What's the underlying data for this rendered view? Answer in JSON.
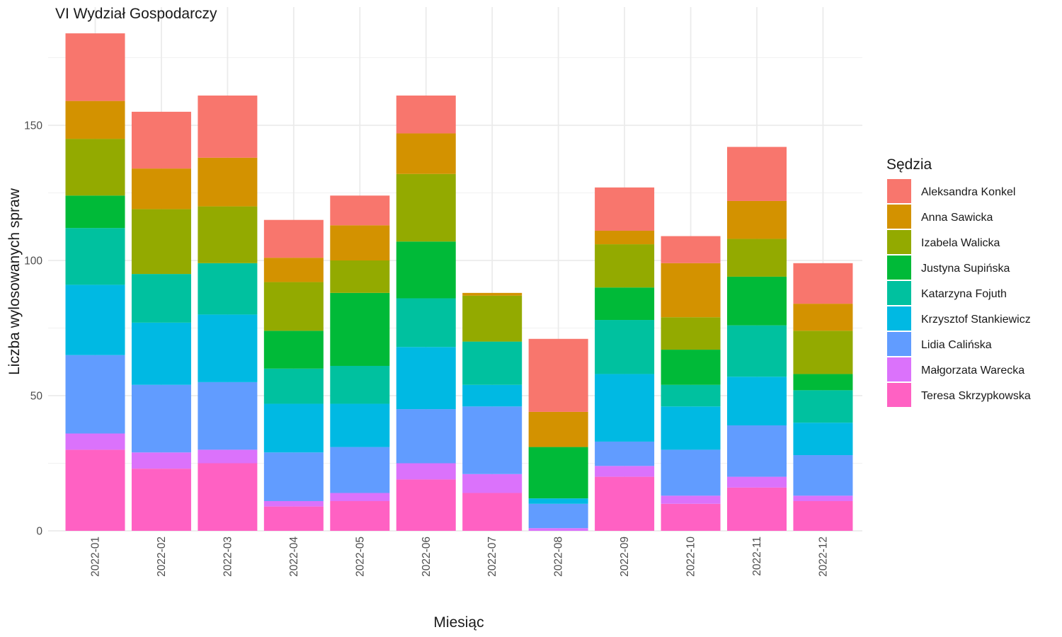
{
  "chart_data": {
    "type": "bar",
    "stacked": true,
    "title": "VI Wydział Gospodarczy",
    "xlabel": "Miesiąc",
    "ylabel": "Liczba wylosowanych spraw",
    "ylim": [
      0,
      190
    ],
    "yticks": [
      0,
      50,
      100,
      150
    ],
    "grid": true,
    "legend_title": "Sędzia",
    "legend_position": "right",
    "categories": [
      "2022-01",
      "2022-02",
      "2022-03",
      "2022-04",
      "2022-05",
      "2022-06",
      "2022-07",
      "2022-08",
      "2022-09",
      "2022-10",
      "2022-11",
      "2022-12"
    ],
    "series": [
      {
        "name": "Teresa Skrzypkowska",
        "color": "#FF61C3",
        "values": [
          30,
          23,
          25,
          9,
          11,
          19,
          14,
          0,
          20,
          10,
          16,
          11
        ]
      },
      {
        "name": "Małgorzata Warecka",
        "color": "#DB72FB",
        "values": [
          6,
          6,
          5,
          2,
          3,
          6,
          7,
          1,
          4,
          3,
          4,
          2
        ]
      },
      {
        "name": "Lidia Calińska",
        "color": "#619CFF",
        "values": [
          29,
          25,
          25,
          18,
          17,
          20,
          25,
          9,
          9,
          17,
          19,
          15
        ]
      },
      {
        "name": "Krzysztof Stankiewicz",
        "color": "#00B9E3",
        "values": [
          26,
          23,
          25,
          18,
          16,
          23,
          8,
          2,
          25,
          16,
          18,
          12
        ]
      },
      {
        "name": "Katarzyna Fojuth",
        "color": "#00C19F",
        "values": [
          21,
          18,
          19,
          13,
          14,
          18,
          16,
          0,
          20,
          8,
          19,
          12
        ]
      },
      {
        "name": "Justyna Supińska",
        "color": "#00BA38",
        "values": [
          12,
          0,
          0,
          14,
          27,
          21,
          0,
          19,
          12,
          13,
          18,
          6
        ]
      },
      {
        "name": "Izabela Walicka",
        "color": "#93AA00",
        "values": [
          21,
          24,
          21,
          18,
          12,
          25,
          17,
          0,
          16,
          12,
          14,
          16
        ]
      },
      {
        "name": "Anna Sawicka",
        "color": "#D39200",
        "values": [
          14,
          15,
          18,
          9,
          13,
          15,
          1,
          13,
          5,
          20,
          14,
          10
        ]
      },
      {
        "name": "Aleksandra Konkel",
        "color": "#F8766D",
        "values": [
          25,
          21,
          23,
          14,
          11,
          14,
          0,
          27,
          16,
          10,
          20,
          15
        ]
      }
    ],
    "legend_order": [
      "Aleksandra Konkel",
      "Anna Sawicka",
      "Izabela Walicka",
      "Justyna Supińska",
      "Katarzyna Fojuth",
      "Krzysztof Stankiewicz",
      "Lidia Calińska",
      "Małgorzata Warecka",
      "Teresa Skrzypkowska"
    ]
  }
}
